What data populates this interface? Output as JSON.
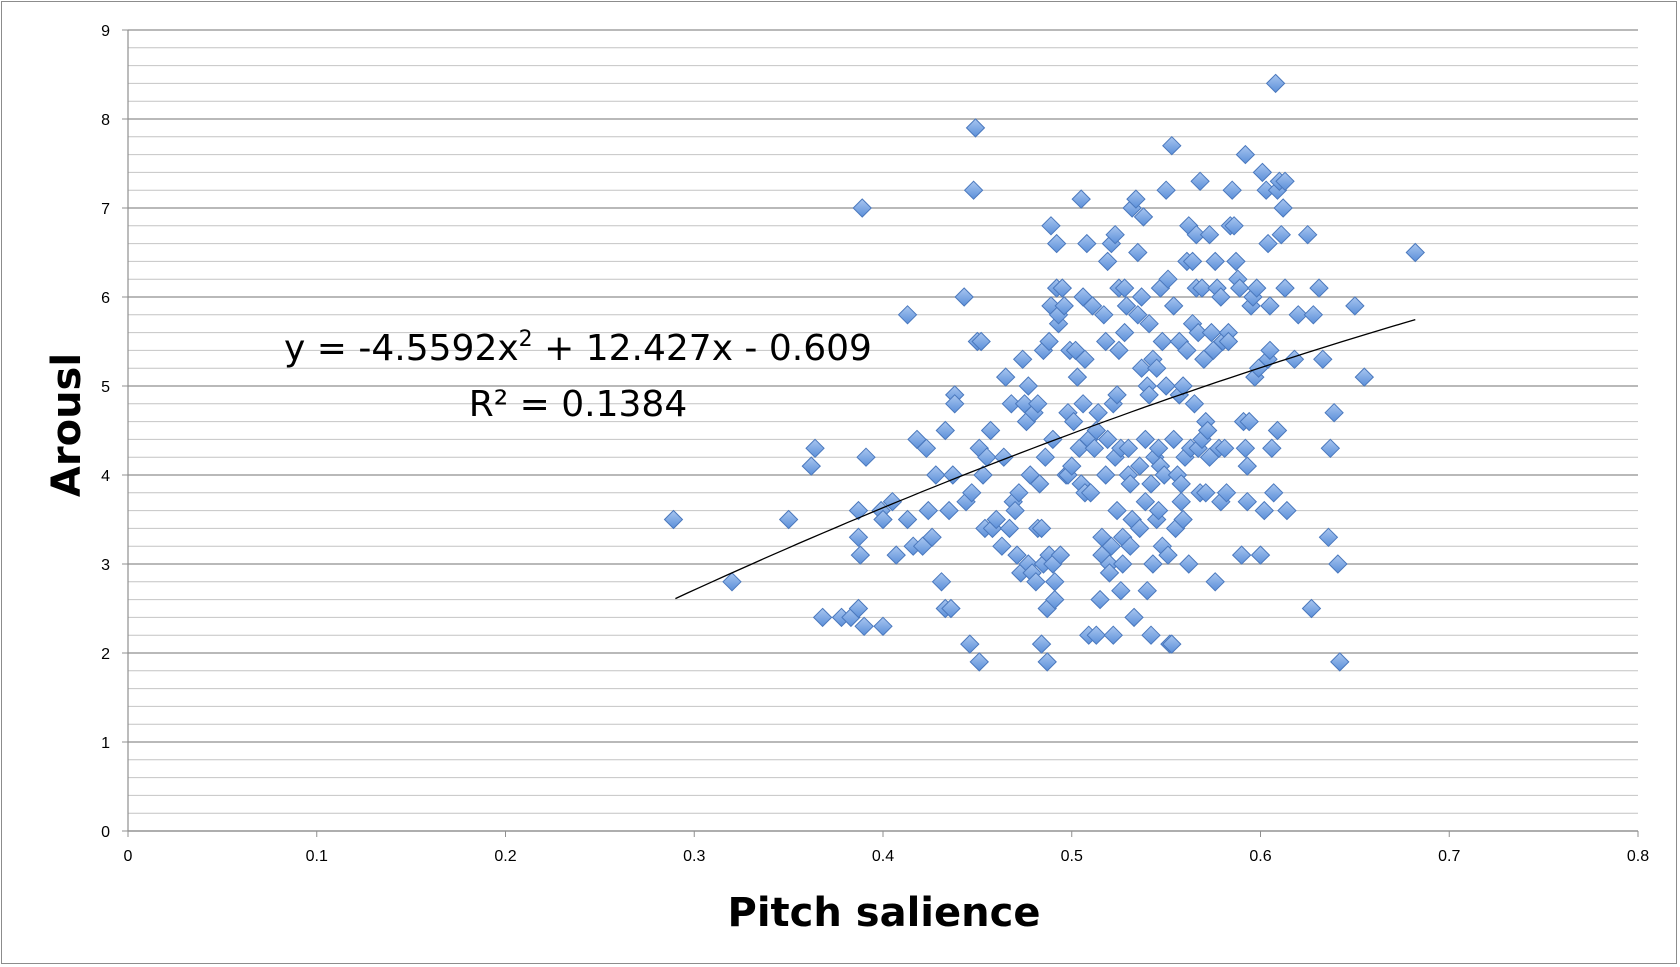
{
  "chart_data": {
    "type": "scatter",
    "title": "",
    "xlabel": "Pitch salience",
    "ylabel": "Arousl",
    "xlim": [
      0,
      0.8
    ],
    "ylim": [
      0,
      9
    ],
    "x_ticks": [
      "0",
      "0.1",
      "0.2",
      "0.3",
      "0.4",
      "0.5",
      "0.6",
      "0.7",
      "0.8"
    ],
    "y_ticks": [
      "0",
      "1",
      "2",
      "3",
      "4",
      "5",
      "6",
      "7",
      "8",
      "9"
    ],
    "grid": "horizontal major and minor",
    "marker": "diamond",
    "marker_color": "#5b8fd9",
    "trendline": {
      "type": "polynomial order 2",
      "coefficients": [
        -4.5592,
        12.427,
        -0.609
      ],
      "x_range": [
        0.29,
        0.682
      ],
      "equation_text": "y = -4.5592x",
      "equation_sup": "2",
      "equation_rest": " + 12.427x - 0.609",
      "r2_text": "R² = 0.1384"
    },
    "points": [
      [
        0.289,
        3.5
      ],
      [
        0.32,
        2.8
      ],
      [
        0.35,
        3.5
      ],
      [
        0.362,
        4.1
      ],
      [
        0.364,
        4.3
      ],
      [
        0.368,
        2.4
      ],
      [
        0.378,
        2.4
      ],
      [
        0.383,
        2.4
      ],
      [
        0.387,
        2.5
      ],
      [
        0.387,
        3.6
      ],
      [
        0.387,
        3.3
      ],
      [
        0.388,
        3.1
      ],
      [
        0.389,
        7.0
      ],
      [
        0.39,
        2.3
      ],
      [
        0.391,
        4.2
      ],
      [
        0.399,
        3.6
      ],
      [
        0.4,
        3.5
      ],
      [
        0.4,
        2.3
      ],
      [
        0.405,
        3.7
      ],
      [
        0.407,
        3.1
      ],
      [
        0.413,
        3.5
      ],
      [
        0.413,
        5.8
      ],
      [
        0.416,
        3.2
      ],
      [
        0.418,
        4.4
      ],
      [
        0.421,
        3.2
      ],
      [
        0.423,
        4.3
      ],
      [
        0.424,
        3.6
      ],
      [
        0.426,
        3.3
      ],
      [
        0.428,
        4.0
      ],
      [
        0.431,
        2.8
      ],
      [
        0.433,
        4.5
      ],
      [
        0.433,
        2.5
      ],
      [
        0.435,
        3.6
      ],
      [
        0.436,
        2.5
      ],
      [
        0.437,
        4.0
      ],
      [
        0.438,
        4.9
      ],
      [
        0.438,
        4.8
      ],
      [
        0.443,
        6.0
      ],
      [
        0.444,
        3.7
      ],
      [
        0.446,
        2.1
      ],
      [
        0.447,
        3.8
      ],
      [
        0.448,
        7.2
      ],
      [
        0.449,
        7.9
      ],
      [
        0.45,
        5.5
      ],
      [
        0.451,
        4.3
      ],
      [
        0.451,
        1.9
      ],
      [
        0.452,
        5.5
      ],
      [
        0.453,
        4.0
      ],
      [
        0.454,
        3.4
      ],
      [
        0.455,
        4.2
      ],
      [
        0.457,
        4.5
      ],
      [
        0.458,
        3.4
      ],
      [
        0.46,
        3.5
      ],
      [
        0.463,
        3.2
      ],
      [
        0.464,
        4.2
      ],
      [
        0.465,
        5.1
      ],
      [
        0.467,
        3.4
      ],
      [
        0.468,
        4.8
      ],
      [
        0.469,
        3.7
      ],
      [
        0.47,
        3.6
      ],
      [
        0.471,
        3.1
      ],
      [
        0.472,
        3.8
      ],
      [
        0.473,
        2.9
      ],
      [
        0.474,
        5.3
      ],
      [
        0.475,
        4.8
      ],
      [
        0.476,
        4.6
      ],
      [
        0.477,
        5.0
      ],
      [
        0.477,
        3.0
      ],
      [
        0.478,
        4.0
      ],
      [
        0.479,
        2.9
      ],
      [
        0.48,
        4.7
      ],
      [
        0.481,
        2.8
      ],
      [
        0.482,
        4.8
      ],
      [
        0.482,
        3.4
      ],
      [
        0.483,
        3.9
      ],
      [
        0.484,
        2.1
      ],
      [
        0.484,
        3.4
      ],
      [
        0.485,
        5.4
      ],
      [
        0.485,
        3.0
      ],
      [
        0.486,
        4.2
      ],
      [
        0.487,
        2.5
      ],
      [
        0.487,
        1.9
      ],
      [
        0.488,
        5.5
      ],
      [
        0.488,
        3.1
      ],
      [
        0.489,
        6.8
      ],
      [
        0.489,
        5.9
      ],
      [
        0.49,
        4.4
      ],
      [
        0.49,
        3.0
      ],
      [
        0.491,
        2.6
      ],
      [
        0.491,
        2.8
      ],
      [
        0.492,
        6.1
      ],
      [
        0.492,
        6.6
      ],
      [
        0.493,
        5.7
      ],
      [
        0.493,
        5.8
      ],
      [
        0.494,
        3.1
      ],
      [
        0.495,
        6.1
      ],
      [
        0.496,
        5.9
      ],
      [
        0.497,
        4.0
      ],
      [
        0.498,
        4.7
      ],
      [
        0.498,
        4.0
      ],
      [
        0.499,
        5.4
      ],
      [
        0.5,
        4.1
      ],
      [
        0.501,
        4.6
      ],
      [
        0.502,
        5.4
      ],
      [
        0.503,
        5.1
      ],
      [
        0.504,
        4.3
      ],
      [
        0.505,
        3.9
      ],
      [
        0.505,
        7.1
      ],
      [
        0.506,
        4.8
      ],
      [
        0.506,
        6.0
      ],
      [
        0.507,
        3.8
      ],
      [
        0.507,
        5.3
      ],
      [
        0.508,
        6.6
      ],
      [
        0.509,
        4.4
      ],
      [
        0.509,
        2.2
      ],
      [
        0.51,
        3.8
      ],
      [
        0.511,
        5.9
      ],
      [
        0.512,
        4.3
      ],
      [
        0.513,
        4.5
      ],
      [
        0.513,
        2.2
      ],
      [
        0.514,
        4.7
      ],
      [
        0.515,
        2.6
      ],
      [
        0.516,
        3.1
      ],
      [
        0.516,
        3.3
      ],
      [
        0.517,
        5.8
      ],
      [
        0.518,
        5.5
      ],
      [
        0.518,
        4.0
      ],
      [
        0.519,
        6.4
      ],
      [
        0.519,
        4.4
      ],
      [
        0.52,
        3.0
      ],
      [
        0.52,
        2.9
      ],
      [
        0.521,
        6.6
      ],
      [
        0.521,
        3.2
      ],
      [
        0.522,
        2.2
      ],
      [
        0.522,
        4.8
      ],
      [
        0.523,
        4.2
      ],
      [
        0.523,
        6.7
      ],
      [
        0.524,
        3.6
      ],
      [
        0.524,
        4.9
      ],
      [
        0.525,
        6.1
      ],
      [
        0.525,
        5.4
      ],
      [
        0.526,
        4.3
      ],
      [
        0.526,
        2.7
      ],
      [
        0.527,
        3.0
      ],
      [
        0.527,
        3.3
      ],
      [
        0.528,
        5.6
      ],
      [
        0.528,
        6.1
      ],
      [
        0.529,
        5.9
      ],
      [
        0.53,
        4.0
      ],
      [
        0.53,
        4.3
      ],
      [
        0.531,
        3.9
      ],
      [
        0.531,
        3.2
      ],
      [
        0.532,
        3.5
      ],
      [
        0.532,
        7.0
      ],
      [
        0.533,
        2.4
      ],
      [
        0.534,
        7.1
      ],
      [
        0.535,
        6.5
      ],
      [
        0.535,
        5.8
      ],
      [
        0.536,
        4.1
      ],
      [
        0.536,
        3.4
      ],
      [
        0.537,
        5.2
      ],
      [
        0.537,
        6.0
      ],
      [
        0.538,
        6.9
      ],
      [
        0.539,
        3.7
      ],
      [
        0.539,
        4.4
      ],
      [
        0.54,
        5.0
      ],
      [
        0.54,
        2.7
      ],
      [
        0.541,
        5.7
      ],
      [
        0.541,
        4.9
      ],
      [
        0.542,
        3.9
      ],
      [
        0.542,
        2.2
      ],
      [
        0.543,
        5.3
      ],
      [
        0.543,
        3.0
      ],
      [
        0.544,
        4.2
      ],
      [
        0.545,
        5.2
      ],
      [
        0.545,
        3.5
      ],
      [
        0.546,
        4.3
      ],
      [
        0.546,
        3.6
      ],
      [
        0.547,
        6.1
      ],
      [
        0.547,
        4.1
      ],
      [
        0.548,
        5.5
      ],
      [
        0.548,
        3.2
      ],
      [
        0.549,
        4.0
      ],
      [
        0.55,
        7.2
      ],
      [
        0.55,
        5.0
      ],
      [
        0.551,
        3.1
      ],
      [
        0.551,
        6.2
      ],
      [
        0.552,
        2.1
      ],
      [
        0.553,
        2.1
      ],
      [
        0.553,
        7.7
      ],
      [
        0.554,
        5.9
      ],
      [
        0.554,
        4.4
      ],
      [
        0.555,
        3.4
      ],
      [
        0.556,
        4.0
      ],
      [
        0.557,
        5.5
      ],
      [
        0.557,
        4.9
      ],
      [
        0.558,
        3.9
      ],
      [
        0.558,
        3.7
      ],
      [
        0.559,
        5.0
      ],
      [
        0.559,
        3.5
      ],
      [
        0.56,
        4.2
      ],
      [
        0.561,
        6.4
      ],
      [
        0.561,
        5.4
      ],
      [
        0.562,
        3.0
      ],
      [
        0.562,
        6.8
      ],
      [
        0.563,
        4.3
      ],
      [
        0.564,
        6.4
      ],
      [
        0.564,
        5.7
      ],
      [
        0.565,
        4.8
      ],
      [
        0.566,
        6.1
      ],
      [
        0.566,
        6.7
      ],
      [
        0.567,
        4.3
      ],
      [
        0.567,
        5.6
      ],
      [
        0.568,
        7.3
      ],
      [
        0.568,
        3.8
      ],
      [
        0.569,
        6.1
      ],
      [
        0.569,
        4.4
      ],
      [
        0.57,
        5.3
      ],
      [
        0.571,
        4.6
      ],
      [
        0.571,
        3.8
      ],
      [
        0.572,
        4.5
      ],
      [
        0.573,
        6.7
      ],
      [
        0.573,
        4.2
      ],
      [
        0.574,
        5.6
      ],
      [
        0.575,
        5.4
      ],
      [
        0.576,
        6.4
      ],
      [
        0.576,
        2.8
      ],
      [
        0.577,
        6.1
      ],
      [
        0.578,
        4.3
      ],
      [
        0.579,
        6.0
      ],
      [
        0.579,
        3.7
      ],
      [
        0.58,
        5.5
      ],
      [
        0.581,
        4.3
      ],
      [
        0.582,
        3.8
      ],
      [
        0.583,
        5.6
      ],
      [
        0.583,
        5.5
      ],
      [
        0.584,
        6.8
      ],
      [
        0.585,
        7.2
      ],
      [
        0.586,
        6.8
      ],
      [
        0.587,
        6.4
      ],
      [
        0.588,
        6.2
      ],
      [
        0.589,
        6.1
      ],
      [
        0.59,
        3.1
      ],
      [
        0.591,
        4.6
      ],
      [
        0.592,
        7.6
      ],
      [
        0.592,
        4.3
      ],
      [
        0.593,
        4.1
      ],
      [
        0.593,
        3.7
      ],
      [
        0.594,
        4.6
      ],
      [
        0.595,
        5.9
      ],
      [
        0.596,
        6.0
      ],
      [
        0.597,
        5.1
      ],
      [
        0.598,
        6.1
      ],
      [
        0.599,
        5.2
      ],
      [
        0.6,
        3.1
      ],
      [
        0.601,
        7.4
      ],
      [
        0.602,
        3.6
      ],
      [
        0.603,
        7.2
      ],
      [
        0.604,
        5.3
      ],
      [
        0.604,
        6.6
      ],
      [
        0.605,
        5.4
      ],
      [
        0.605,
        5.9
      ],
      [
        0.606,
        4.3
      ],
      [
        0.607,
        3.8
      ],
      [
        0.608,
        8.4
      ],
      [
        0.609,
        7.2
      ],
      [
        0.609,
        4.5
      ],
      [
        0.61,
        7.3
      ],
      [
        0.611,
        6.7
      ],
      [
        0.612,
        7.0
      ],
      [
        0.613,
        7.3
      ],
      [
        0.613,
        6.1
      ],
      [
        0.614,
        3.6
      ],
      [
        0.618,
        5.3
      ],
      [
        0.62,
        5.8
      ],
      [
        0.625,
        6.7
      ],
      [
        0.627,
        2.5
      ],
      [
        0.628,
        5.8
      ],
      [
        0.631,
        6.1
      ],
      [
        0.633,
        5.3
      ],
      [
        0.636,
        3.3
      ],
      [
        0.637,
        4.3
      ],
      [
        0.639,
        4.7
      ],
      [
        0.641,
        3.0
      ],
      [
        0.642,
        1.9
      ],
      [
        0.65,
        5.9
      ],
      [
        0.655,
        5.1
      ],
      [
        0.682,
        6.5
      ]
    ]
  }
}
